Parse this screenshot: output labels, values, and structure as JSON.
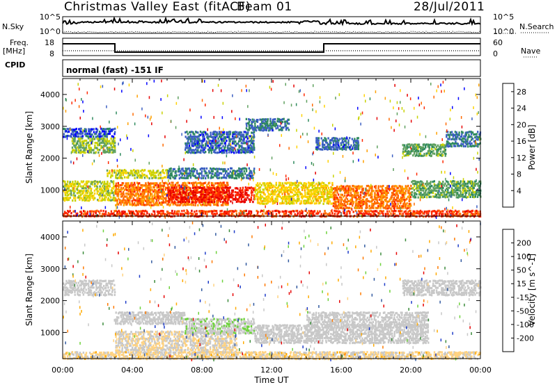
{
  "header": {
    "station": "Christmas Valley East (fitACF)",
    "beam": "Beam 01",
    "date": "28/Jul/2011"
  },
  "top_panels": {
    "left_labels": {
      "nsky": "N.Sky",
      "freq_line1": "Freq.",
      "freq_line2": "[MHz]",
      "cpid": "CPID"
    },
    "right_labels": {
      "nsearch": "N.Search",
      "nave": "Nave"
    },
    "nsky_ticks": [
      "10^5",
      "10^0"
    ],
    "freq_ticks": [
      "18",
      "8"
    ],
    "nave_ticks": [
      "60",
      "0"
    ],
    "cpid_text": "normal (fast) -151 IF"
  },
  "colors": {
    "power": [
      "#0000ff",
      "#3b5fc2",
      "#2f8a5e",
      "#5fa05f",
      "#c8d200",
      "#ffd200",
      "#ffa000",
      "#ff6a00",
      "#ff2800",
      "#e60000"
    ],
    "velocity": [
      "#e60000",
      "#ff7a00",
      "#ffaa00",
      "#ffd280",
      "#c8c8c8",
      "#c8c8c8",
      "#6ed23c",
      "#3c8c3c",
      "#325aa0",
      "#1e3cc8"
    ]
  },
  "chart_data": [
    {
      "type": "heatmap",
      "name": "power",
      "x_axis": {
        "range": [
          "00:00",
          "24:00"
        ],
        "ticks": [
          "00:00",
          "04:00",
          "08:00",
          "12:00",
          "16:00",
          "20:00",
          "00:00"
        ],
        "label": "Time UT"
      },
      "y_axis": {
        "range": [
          180,
          4500
        ],
        "ticks": [
          "1000",
          "2000",
          "3000",
          "4000"
        ],
        "label": "Slant Range [km]"
      },
      "colorbar": {
        "label": "Power [dB]",
        "ticks": [
          "4",
          "8",
          "12",
          "16",
          "20",
          "24",
          "28"
        ],
        "range": [
          0,
          30
        ]
      },
      "regions": [
        {
          "t": [
            0.0,
            3.0
          ],
          "r": [
            700,
            1350
          ],
          "value": 14
        },
        {
          "t": [
            3.0,
            9.5
          ],
          "r": [
            550,
            1300
          ],
          "value": 22
        },
        {
          "t": [
            6.0,
            11.0
          ],
          "r": [
            650,
            1150
          ],
          "value": 27
        },
        {
          "t": [
            11.0,
            15.5
          ],
          "r": [
            600,
            1300
          ],
          "value": 16
        },
        {
          "t": [
            15.5,
            20.0
          ],
          "r": [
            450,
            1200
          ],
          "value": 22
        },
        {
          "t": [
            20.0,
            24.0
          ],
          "r": [
            800,
            1350
          ],
          "value": 10
        },
        {
          "t": [
            0.0,
            24.0
          ],
          "r": [
            200,
            420
          ],
          "value": 25
        },
        {
          "t": [
            0.5,
            3.0
          ],
          "r": [
            2200,
            2700
          ],
          "value": 12
        },
        {
          "t": [
            2.5,
            6.0
          ],
          "r": [
            1400,
            1700
          ],
          "value": 14
        },
        {
          "t": [
            6.0,
            11.0
          ],
          "r": [
            1400,
            1750
          ],
          "value": 6
        },
        {
          "t": [
            7.0,
            11.0
          ],
          "r": [
            2200,
            2900
          ],
          "value": 5
        },
        {
          "t": [
            10.5,
            13.0
          ],
          "r": [
            2900,
            3300
          ],
          "value": 6
        },
        {
          "t": [
            14.5,
            17.0
          ],
          "r": [
            2300,
            2700
          ],
          "value": 5
        },
        {
          "t": [
            19.5,
            22.0
          ],
          "r": [
            2100,
            2500
          ],
          "value": 10
        },
        {
          "t": [
            22.0,
            24.0
          ],
          "r": [
            2400,
            2900
          ],
          "value": 6
        },
        {
          "t": [
            0.0,
            3.0
          ],
          "r": [
            2700,
            3000
          ],
          "value": 4
        }
      ]
    },
    {
      "type": "heatmap",
      "name": "velocity",
      "x_axis": {
        "range": [
          "00:00",
          "24:00"
        ],
        "ticks": [
          "00:00",
          "04:00",
          "08:00",
          "12:00",
          "16:00",
          "20:00",
          "00:00"
        ],
        "label": "Time UT"
      },
      "y_axis": {
        "range": [
          180,
          4500
        ],
        "ticks": [
          "1000",
          "2000",
          "3000",
          "4000"
        ],
        "label": "Slant Range [km]"
      },
      "colorbar": {
        "label": "Velocity [m s^-1]",
        "ticks": [
          "200",
          "100",
          "50",
          "15",
          "-15",
          "-50",
          "-100",
          "-200"
        ],
        "range": [
          -250,
          250
        ]
      },
      "regions": [
        {
          "t": [
            0.0,
            3.0
          ],
          "r": [
            2200,
            2700
          ],
          "value": 0
        },
        {
          "t": [
            3.0,
            7.0
          ],
          "r": [
            1300,
            1700
          ],
          "value": 0
        },
        {
          "t": [
            3.0,
            10.0
          ],
          "r": [
            400,
            1100
          ],
          "value": -40
        },
        {
          "t": [
            7.0,
            11.0
          ],
          "r": [
            1000,
            1500
          ],
          "value": 30
        },
        {
          "t": [
            11.0,
            21.0
          ],
          "r": [
            700,
            1300
          ],
          "value": 0
        },
        {
          "t": [
            14.0,
            21.0
          ],
          "r": [
            1200,
            1700
          ],
          "value": 0
        },
        {
          "t": [
            19.5,
            24.0
          ],
          "r": [
            2200,
            2700
          ],
          "value": 0
        },
        {
          "t": [
            0.0,
            24.0
          ],
          "r": [
            200,
            450
          ],
          "value": -60
        }
      ]
    }
  ]
}
